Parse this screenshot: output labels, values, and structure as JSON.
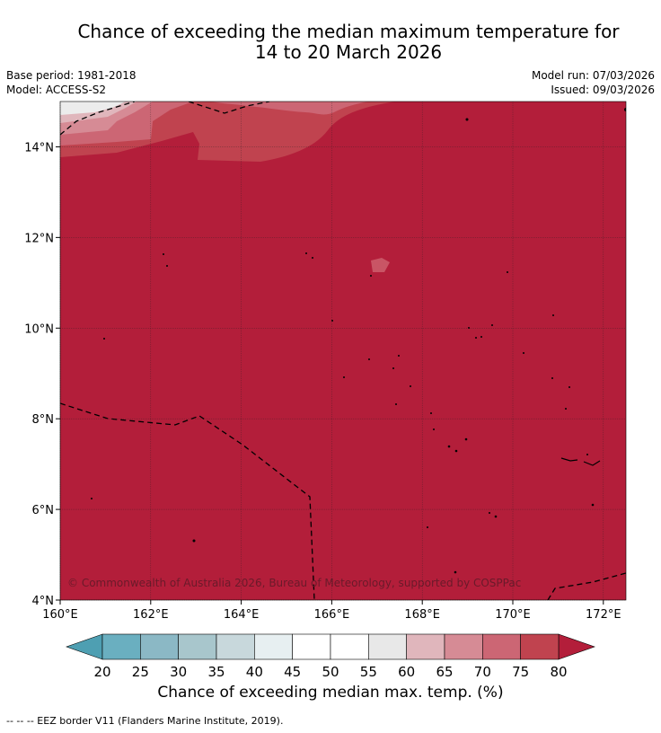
{
  "header": {
    "title_line1": "Chance of exceeding the median maximum temperature for",
    "title_line2": "14 to 20 March 2026",
    "base_period": "Base period: 1981-2018",
    "model": "Model: ACCESS-S2",
    "model_run": "Model run: 07/03/2026",
    "issued": "Issued: 09/03/2026"
  },
  "map": {
    "x_axis": {
      "min": 160,
      "max": 172.5,
      "ticks": [
        "160°E",
        "162°E",
        "164°E",
        "166°E",
        "168°E",
        "170°E",
        "172°E"
      ],
      "tick_values": [
        160,
        162,
        164,
        166,
        168,
        170,
        172
      ]
    },
    "y_axis": {
      "min": 4,
      "max": 15,
      "ticks": [
        "4°N",
        "6°N",
        "8°N",
        "10°N",
        "12°N",
        "14°N"
      ],
      "tick_values": [
        4,
        6,
        8,
        10,
        12,
        14
      ]
    },
    "dominant_category": "80",
    "copyright": "© Commonwealth of Australia 2026, Bureau of Meteorology, supported by COSPPac",
    "grid": true
  },
  "colorbar": {
    "title": "Chance of exceeding median max. temp. (%)",
    "labels": [
      "20",
      "25",
      "30",
      "35",
      "40",
      "45",
      "50",
      "55",
      "60",
      "65",
      "70",
      "75",
      "80"
    ],
    "colors": [
      "#6aafc0",
      "#8bb8c5",
      "#a8c6cc",
      "#c8d8dc",
      "#e7eff1",
      "#ffffff",
      "#ffffff",
      "#e8e8e8",
      "#e0b6bc",
      "#d68b95",
      "#cc6674",
      "#c0434f",
      "#b31e3a"
    ],
    "low_color": "#4e9fb2",
    "high_color": "#b31e3a"
  },
  "footer": {
    "legend": "--  --  -- EEZ border V11 (Flanders Marine Institute, 2019)."
  }
}
